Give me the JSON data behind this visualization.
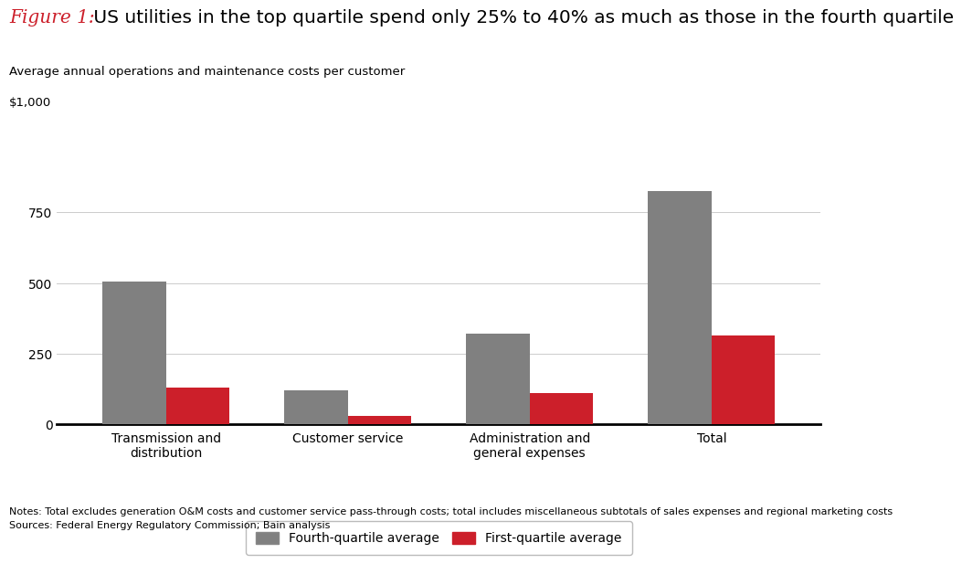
{
  "title_italic_red": "Figure 1:",
  "title_rest": " US utilities in the top quartile spend only 25% to 40% as much as those in the fourth quartile",
  "subtitle": "Average annual operations and maintenance costs per customer",
  "y_top_label": "$1,000",
  "categories": [
    "Transmission and\ndistribution",
    "Customer service",
    "Administration and\ngeneral expenses",
    "Total"
  ],
  "fourth_quartile": [
    505,
    120,
    320,
    825
  ],
  "first_quartile": [
    130,
    30,
    110,
    315
  ],
  "fourth_color": "#808080",
  "first_color": "#cc1f2a",
  "bar_width": 0.35,
  "ylim": [
    0,
    1000
  ],
  "yticks": [
    0,
    250,
    500,
    750
  ],
  "legend_fourth": "Fourth-quartile average",
  "legend_first": "First-quartile average",
  "notes": "Notes: Total excludes generation O&M costs and customer service pass-through costs; total includes miscellaneous subtotals of sales expenses and regional marketing costs",
  "sources": "Sources: Federal Energy Regulatory Commission; Bain analysis",
  "background_color": "#ffffff",
  "title_fontsize": 14.5,
  "subtitle_fontsize": 9.5,
  "tick_fontsize": 10,
  "legend_fontsize": 10,
  "notes_fontsize": 8.0
}
